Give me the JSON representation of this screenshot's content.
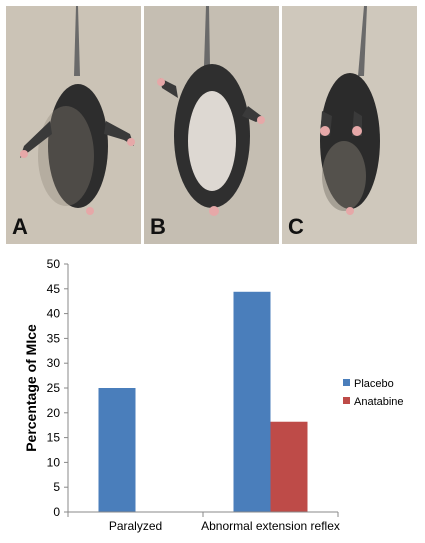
{
  "panels": [
    {
      "label": "A"
    },
    {
      "label": "B"
    },
    {
      "label": "C"
    }
  ],
  "chart_data": {
    "type": "bar",
    "categories": [
      "Paralyzed",
      "Abnormal extension reflex"
    ],
    "series": [
      {
        "name": "Placebo",
        "values": [
          25,
          44.4
        ],
        "color": "#4a7ebb"
      },
      {
        "name": "Anatabine",
        "values": [
          0,
          18.2
        ],
        "color": "#be4b48"
      }
    ],
    "ylabel": "Percentage of MIce",
    "ylim": [
      0,
      50
    ],
    "yticks": [
      0,
      5,
      10,
      15,
      20,
      25,
      30,
      35,
      40,
      45,
      50
    ],
    "legend_position": "right",
    "grid": false
  }
}
